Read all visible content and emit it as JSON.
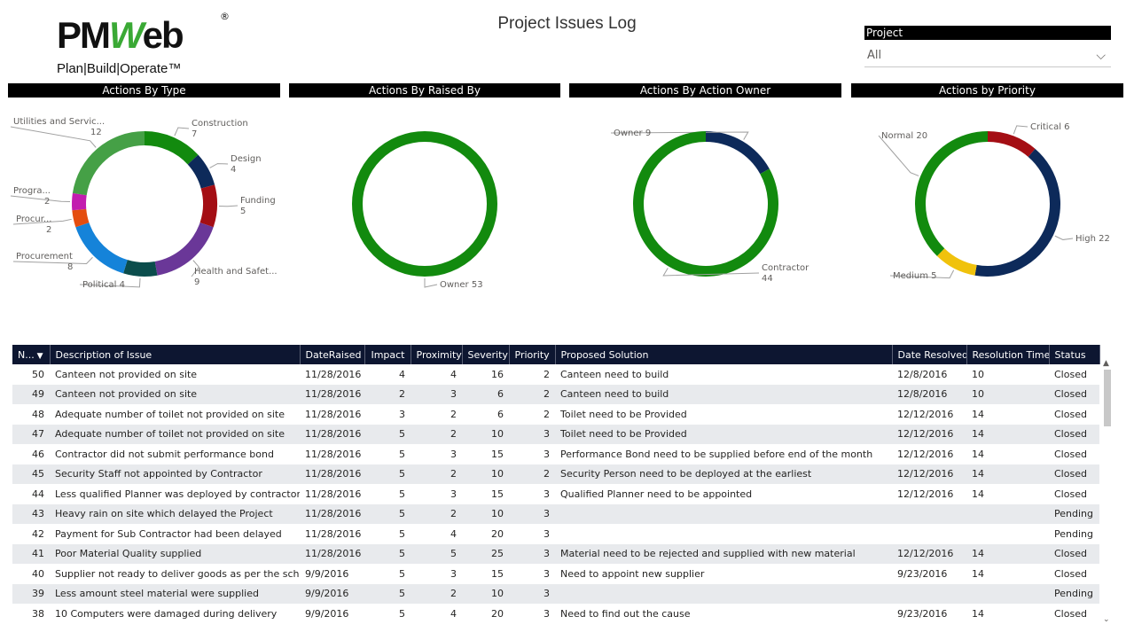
{
  "page": {
    "title": "Project Issues Log",
    "logo": {
      "brand_left": "PM",
      "brand_mid": "W",
      "brand_right": "eb",
      "registered": "®",
      "tagline": "Plan|Build|Operate™"
    }
  },
  "slicer": {
    "label": "Project",
    "value": "All",
    "chevron_icon": "chevron-down-icon"
  },
  "chart_data": [
    {
      "type": "pie",
      "title": "Actions By Type",
      "slices": [
        {
          "name": "Construction",
          "value": 7,
          "label": "Construction",
          "value_label": "7",
          "color": "#128a0e"
        },
        {
          "name": "Design",
          "value": 4,
          "label": "Design",
          "value_label": "4",
          "color": "#0d2a5a"
        },
        {
          "name": "Funding",
          "value": 5,
          "label": "Funding",
          "value_label": "5",
          "color": "#a40e14"
        },
        {
          "name": "Health and Safet...",
          "value": 9,
          "label": "Health and Safet...",
          "value_label": "9",
          "color": "#6a3798"
        },
        {
          "name": "Political",
          "value": 4,
          "label": "Political 4",
          "value_label": "",
          "color": "#0b4d4c"
        },
        {
          "name": "Procurement",
          "value": 8,
          "label": "Procurement",
          "value_label": "8",
          "color": "#1583d9"
        },
        {
          "name": "Procur...",
          "value": 2,
          "label": "Procur...",
          "value_label": "2",
          "color": "#e44d0f"
        },
        {
          "name": "Progra...",
          "value": 2,
          "label": "Progra...",
          "value_label": "2",
          "color": "#c21caf"
        },
        {
          "name": "Utilities and Servic...",
          "value": 12,
          "label": "Utilities and Servic...",
          "value_label": "12",
          "color": "#45a046"
        }
      ]
    },
    {
      "type": "pie",
      "title": "Actions By Raised By",
      "slices": [
        {
          "name": "Owner",
          "value": 53,
          "label": "Owner 53",
          "value_label": "",
          "color": "#128a0e"
        }
      ]
    },
    {
      "type": "pie",
      "title": "Actions By Action Owner",
      "slices": [
        {
          "name": "Owner",
          "value": 9,
          "label": "Owner 9",
          "value_label": "",
          "color": "#0d2a5a"
        },
        {
          "name": "Contractor",
          "value": 44,
          "label": "Contractor",
          "value_label": "44",
          "color": "#128a0e"
        }
      ]
    },
    {
      "type": "pie",
      "title": "Actions by Priority",
      "slices": [
        {
          "name": "Critical",
          "value": 6,
          "label": "Critical 6",
          "value_label": "",
          "color": "#a40e14"
        },
        {
          "name": "High",
          "value": 22,
          "label": "High 22",
          "value_label": "",
          "color": "#0d2a5a"
        },
        {
          "name": "Medium",
          "value": 5,
          "label": "Medium 5",
          "value_label": "",
          "color": "#f0c20c"
        },
        {
          "name": "Normal",
          "value": 20,
          "label": "Normal 20",
          "value_label": "",
          "color": "#128a0e"
        }
      ]
    }
  ],
  "table": {
    "sort_icon": "sort-desc-icon",
    "columns": [
      "N...",
      "Description of Issue",
      "DateRaised",
      "Impact",
      "Proximity",
      "Severity",
      "Priority",
      "Proposed Solution",
      "Date Resolved",
      "Resolution Time",
      "Status"
    ],
    "rows": [
      [
        "50",
        "Canteen not provided on site",
        "11/28/2016",
        "4",
        "4",
        "16",
        "2",
        "Canteen need to build",
        "12/8/2016",
        "10",
        "Closed"
      ],
      [
        "49",
        "Canteen not provided on site",
        "11/28/2016",
        "2",
        "3",
        "6",
        "2",
        "Canteen need to build",
        "12/8/2016",
        "10",
        "Closed"
      ],
      [
        "48",
        "Adequate number of toilet not provided on site",
        "11/28/2016",
        "3",
        "2",
        "6",
        "2",
        "Toilet need to be Provided",
        "12/12/2016",
        "14",
        "Closed"
      ],
      [
        "47",
        "Adequate number of toilet not provided on site",
        "11/28/2016",
        "5",
        "2",
        "10",
        "3",
        "Toilet need to be Provided",
        "12/12/2016",
        "14",
        "Closed"
      ],
      [
        "46",
        "Contractor did not submit performance bond",
        "11/28/2016",
        "5",
        "3",
        "15",
        "3",
        "Performance Bond need to be supplied before end of the month",
        "12/12/2016",
        "14",
        "Closed"
      ],
      [
        "45",
        "Security Staff not appointed by Contractor",
        "11/28/2016",
        "5",
        "2",
        "10",
        "2",
        "Security Person need to be deployed at the earliest",
        "12/12/2016",
        "14",
        "Closed"
      ],
      [
        "44",
        "Less qualified Planner was deployed by contractor",
        "11/28/2016",
        "5",
        "3",
        "15",
        "3",
        "Qualified Planner need to be appointed",
        "12/12/2016",
        "14",
        "Closed"
      ],
      [
        "43",
        "Heavy rain on site which delayed the Project",
        "11/28/2016",
        "5",
        "2",
        "10",
        "3",
        "",
        "",
        "",
        "Pending"
      ],
      [
        "42",
        "Payment for Sub Contractor had been delayed",
        "11/28/2016",
        "5",
        "4",
        "20",
        "3",
        "",
        "",
        "",
        "Pending"
      ],
      [
        "41",
        "Poor Material Quality supplied",
        "11/28/2016",
        "5",
        "5",
        "25",
        "3",
        "Material need to be rejected and supplied with new material",
        "12/12/2016",
        "14",
        "Closed"
      ],
      [
        "40",
        "Supplier not ready to deliver goods as per the schedule",
        "9/9/2016",
        "5",
        "3",
        "15",
        "3",
        "Need to appoint new supplier",
        "9/23/2016",
        "14",
        "Closed"
      ],
      [
        "39",
        "Less amount steel material were supplied",
        "9/9/2016",
        "5",
        "2",
        "10",
        "3",
        "",
        "",
        "",
        "Pending"
      ],
      [
        "38",
        "10 Computers were damaged during delivery",
        "9/9/2016",
        "5",
        "4",
        "20",
        "3",
        "Need to find out the cause",
        "9/23/2016",
        "14",
        "Closed"
      ]
    ]
  }
}
